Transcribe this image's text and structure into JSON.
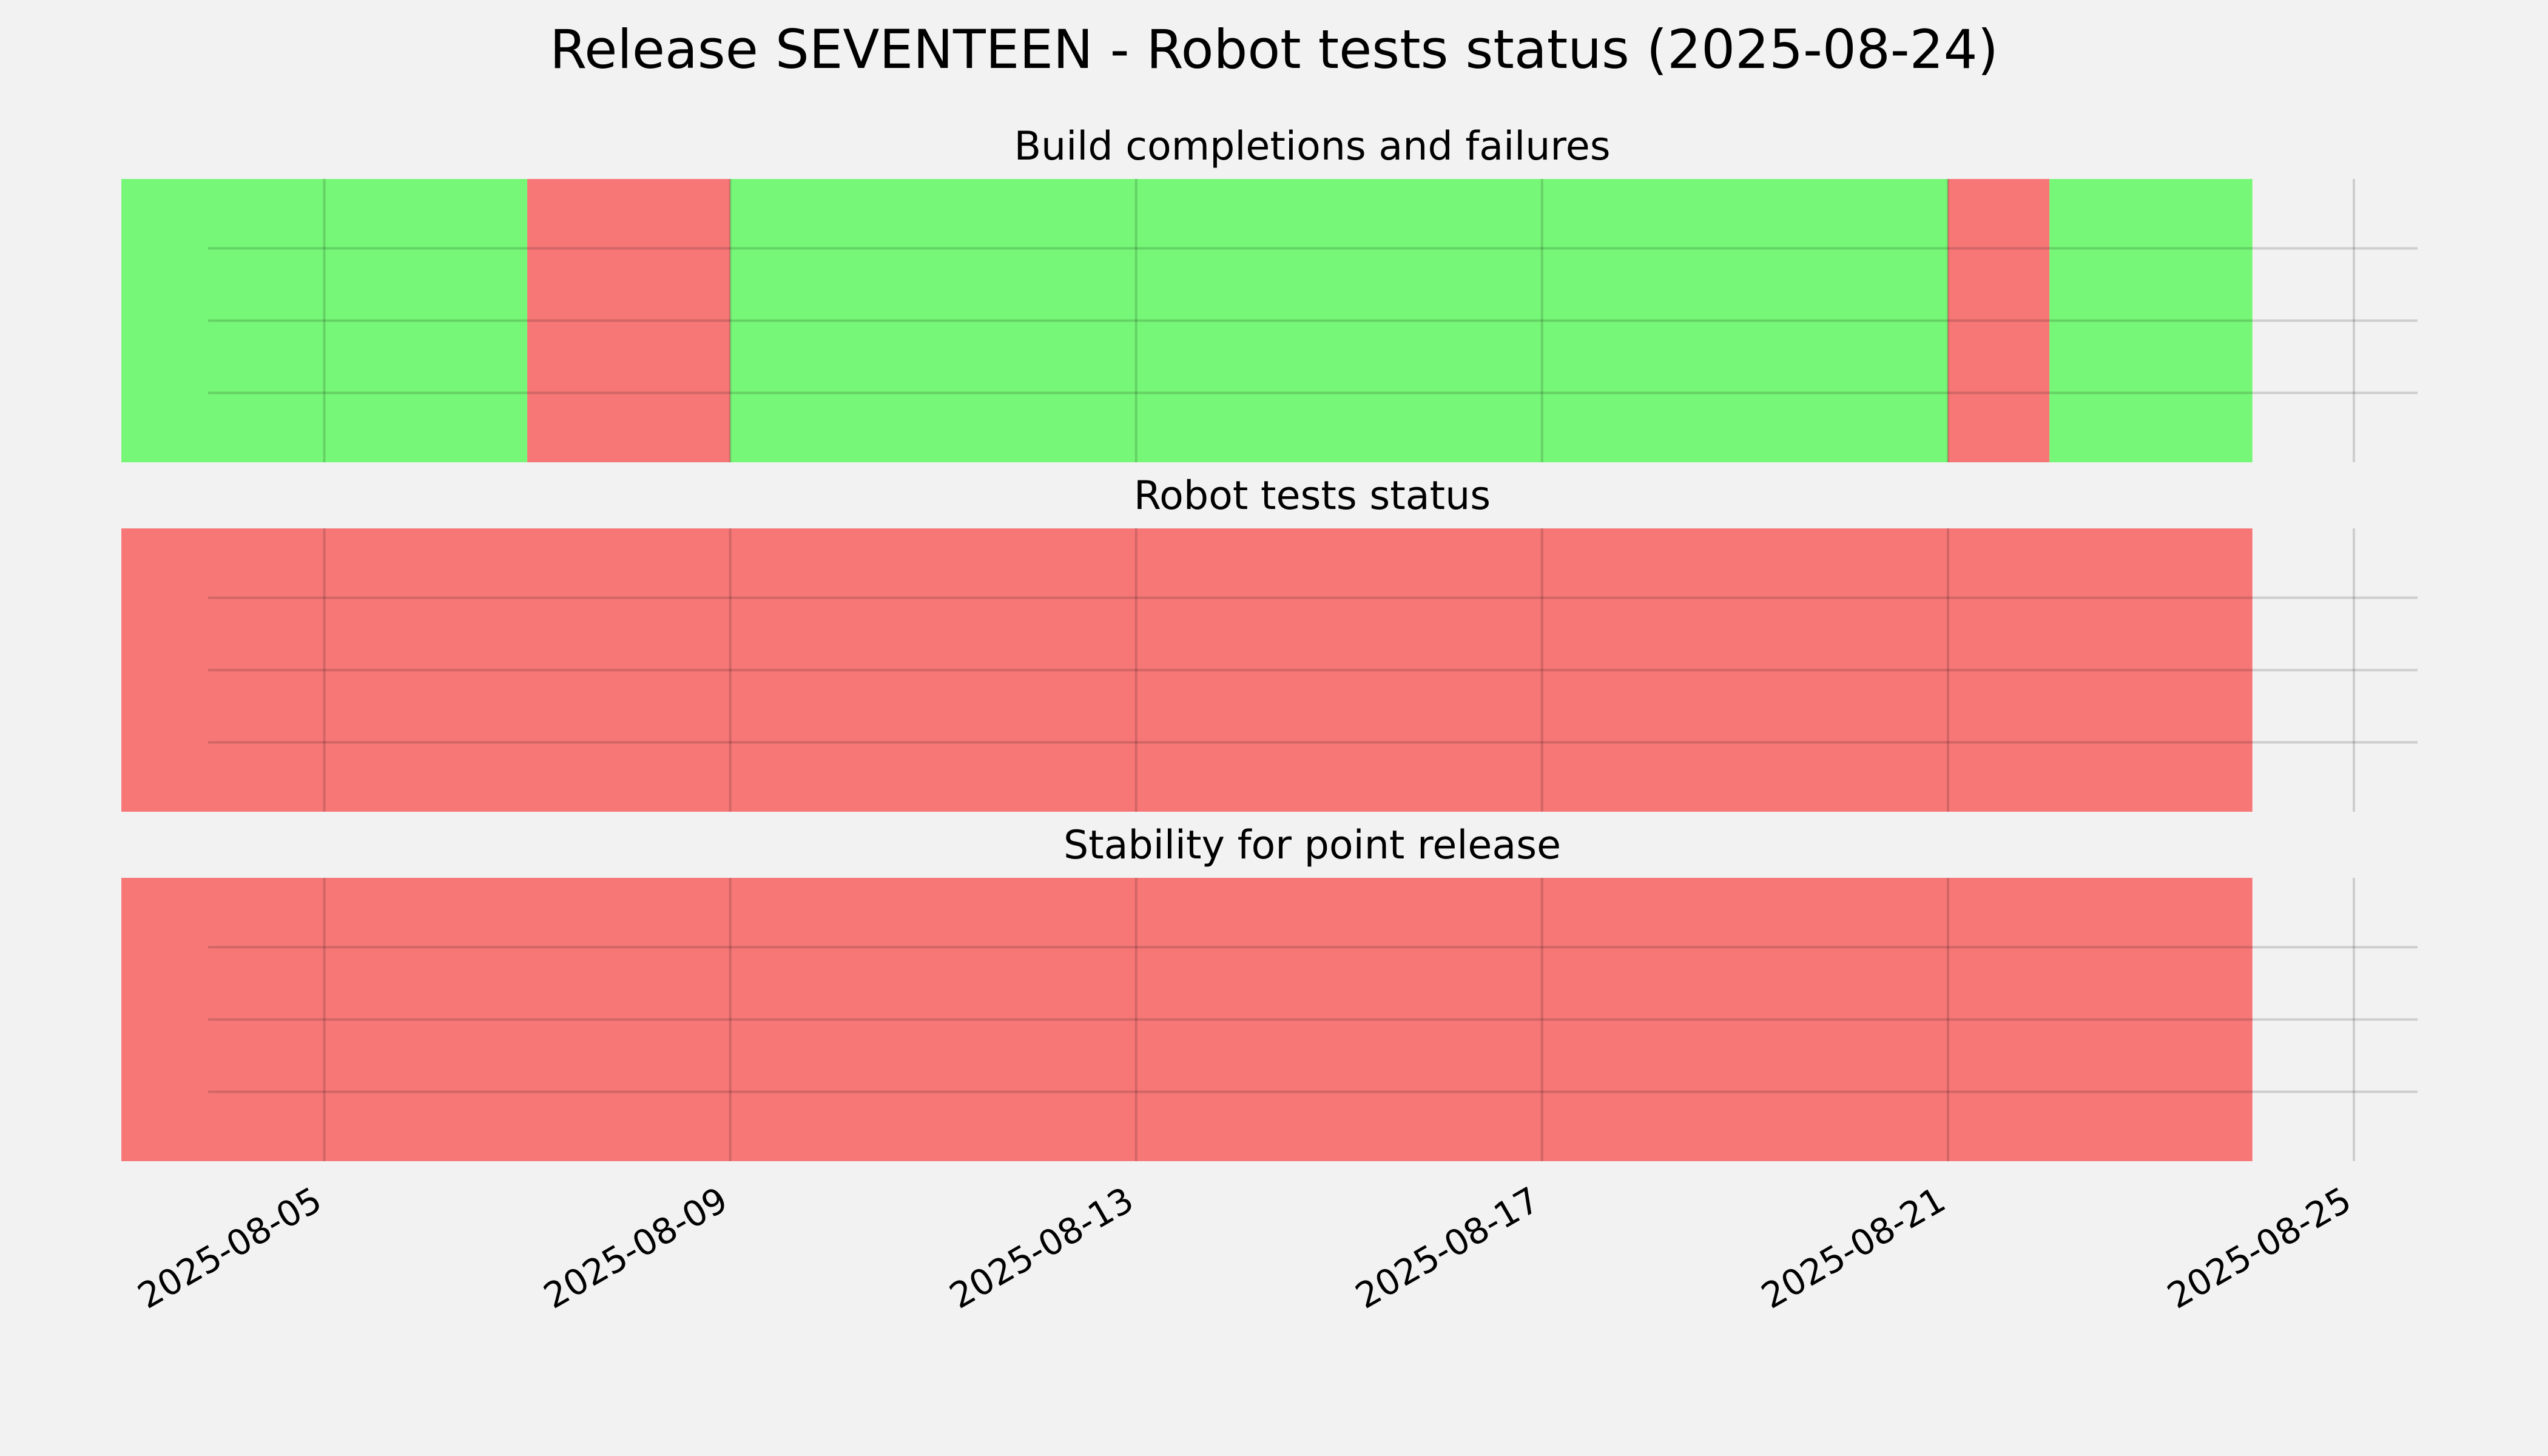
{
  "chart_data": {
    "type": "timeline",
    "title": "Release SEVENTEEN - Robot tests status (2025-08-24)",
    "x_range": [
      "2025-08-03",
      "2025-08-25"
    ],
    "x_ticks": [
      "2025-08-05",
      "2025-08-09",
      "2025-08-13",
      "2025-08-17",
      "2025-08-21",
      "2025-08-25"
    ],
    "grid": true,
    "colors": {
      "pass": "#77f777",
      "fail": "#f77777",
      "background": "#f2f2f2",
      "grid": "#cccccc"
    },
    "panels": [
      {
        "title": "Build completions and failures",
        "segments": [
          {
            "start": "2025-08-03",
            "end": "2025-08-07",
            "status": "pass"
          },
          {
            "start": "2025-08-07",
            "end": "2025-08-09",
            "status": "fail"
          },
          {
            "start": "2025-08-09",
            "end": "2025-08-21",
            "status": "pass"
          },
          {
            "start": "2025-08-21",
            "end": "2025-08-22",
            "status": "fail"
          },
          {
            "start": "2025-08-22",
            "end": "2025-08-24",
            "status": "pass"
          }
        ]
      },
      {
        "title": "Robot tests status",
        "segments": [
          {
            "start": "2025-08-03",
            "end": "2025-08-24",
            "status": "fail"
          }
        ]
      },
      {
        "title": "Stability for point release",
        "segments": [
          {
            "start": "2025-08-03",
            "end": "2025-08-24",
            "status": "fail"
          }
        ]
      }
    ]
  }
}
